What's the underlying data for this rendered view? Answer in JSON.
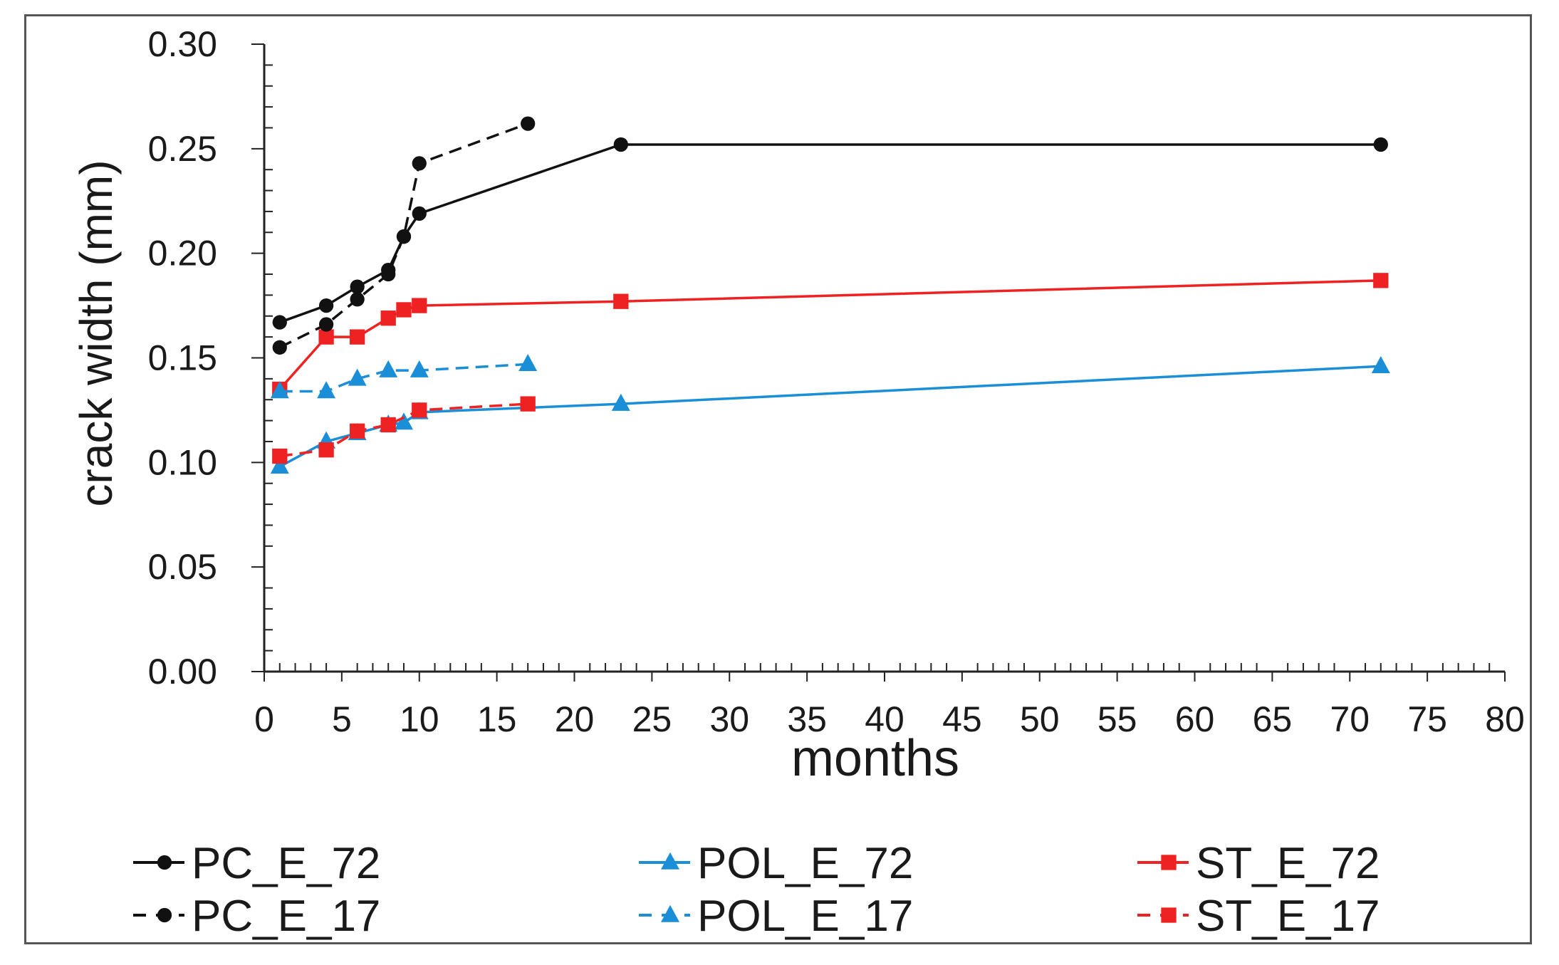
{
  "chart_data": {
    "type": "line",
    "title": "",
    "xlabel": "months",
    "ylabel": "crack width (mm)",
    "xlim": [
      0,
      80
    ],
    "ylim": [
      0,
      0.3
    ],
    "x_ticks": [
      "0",
      "5",
      "10",
      "15",
      "20",
      "25",
      "30",
      "35",
      "40",
      "45",
      "50",
      "55",
      "60",
      "65",
      "70",
      "75",
      "80"
    ],
    "y_ticks": [
      "0.00",
      "0.05",
      "0.10",
      "0.15",
      "0.20",
      "0.25",
      "0.30"
    ],
    "grid": false,
    "legend_position": "bottom",
    "series": [
      {
        "name": "PC_E_72",
        "color": "#111111",
        "dash": "solid",
        "marker": "circle",
        "x": [
          1,
          4,
          6,
          8,
          9,
          10,
          23,
          72
        ],
        "y": [
          0.167,
          0.175,
          0.184,
          0.192,
          0.208,
          0.219,
          0.252,
          0.252
        ]
      },
      {
        "name": "POL_E_72",
        "color": "#1a8fd8",
        "dash": "solid",
        "marker": "triangle",
        "x": [
          1,
          4,
          6,
          8,
          9,
          10,
          23,
          72
        ],
        "y": [
          0.098,
          0.11,
          0.114,
          0.118,
          0.119,
          0.124,
          0.128,
          0.146
        ]
      },
      {
        "name": "ST_E_72",
        "color": "#ee2222",
        "dash": "solid",
        "marker": "square",
        "x": [
          1,
          4,
          6,
          8,
          9,
          10,
          23,
          72
        ],
        "y": [
          0.135,
          0.16,
          0.16,
          0.169,
          0.173,
          0.175,
          0.177,
          0.187
        ]
      },
      {
        "name": "PC_E_17",
        "color": "#111111",
        "dash": "dash",
        "marker": "circle",
        "x": [
          1,
          4,
          6,
          8,
          9,
          10,
          17
        ],
        "y": [
          0.155,
          0.166,
          0.178,
          0.19,
          0.208,
          0.243,
          0.262
        ]
      },
      {
        "name": "POL_E_17",
        "color": "#1a8fd8",
        "dash": "dash",
        "marker": "triangle",
        "x": [
          1,
          4,
          6,
          8,
          10,
          17
        ],
        "y": [
          0.134,
          0.134,
          0.14,
          0.144,
          0.144,
          0.147
        ]
      },
      {
        "name": "ST_E_17",
        "color": "#ee2222",
        "dash": "dash",
        "marker": "square",
        "x": [
          1,
          4,
          6,
          8,
          10,
          17
        ],
        "y": [
          0.103,
          0.106,
          0.115,
          0.118,
          0.125,
          0.128
        ]
      }
    ]
  }
}
